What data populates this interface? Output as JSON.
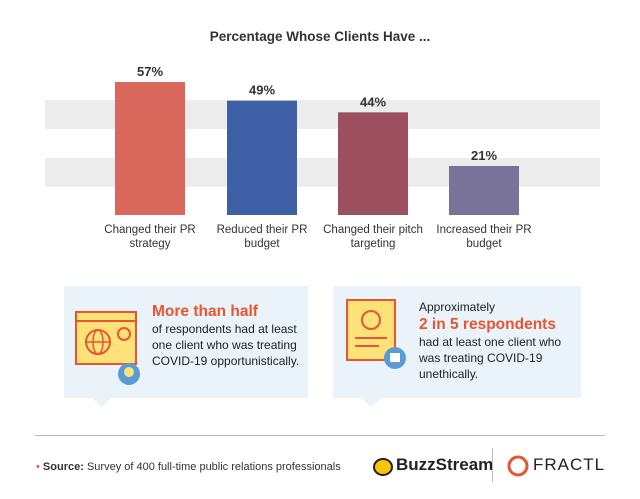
{
  "chart_data": {
    "type": "bar",
    "title": "Percentage Whose Clients Have ...",
    "categories": [
      "Changed their PR strategy",
      "Reduced their PR budget",
      "Changed their pitch targeting",
      "Increased their PR budget"
    ],
    "values": [
      57,
      49,
      44,
      21
    ],
    "value_labels": [
      "57%",
      "49%",
      "44%",
      "21%"
    ],
    "colors": [
      "#d9675b",
      "#3f60a6",
      "#9c4f5e",
      "#7a7399"
    ],
    "ylim": [
      0,
      60
    ]
  },
  "callouts": [
    {
      "highlight": "More than half",
      "text": "of respondents had at least one client who was treating COVID-19 opportunistically."
    },
    {
      "intro": "Approximately",
      "highlight": "2 in 5 respondents",
      "text": "had at least one client who was treating COVID-19 unethically."
    }
  ],
  "footer": {
    "source_label": "Source:",
    "source": "Survey of 400 full-time public relations professionals",
    "logos": [
      "BuzzStream",
      "FRACTL"
    ]
  }
}
